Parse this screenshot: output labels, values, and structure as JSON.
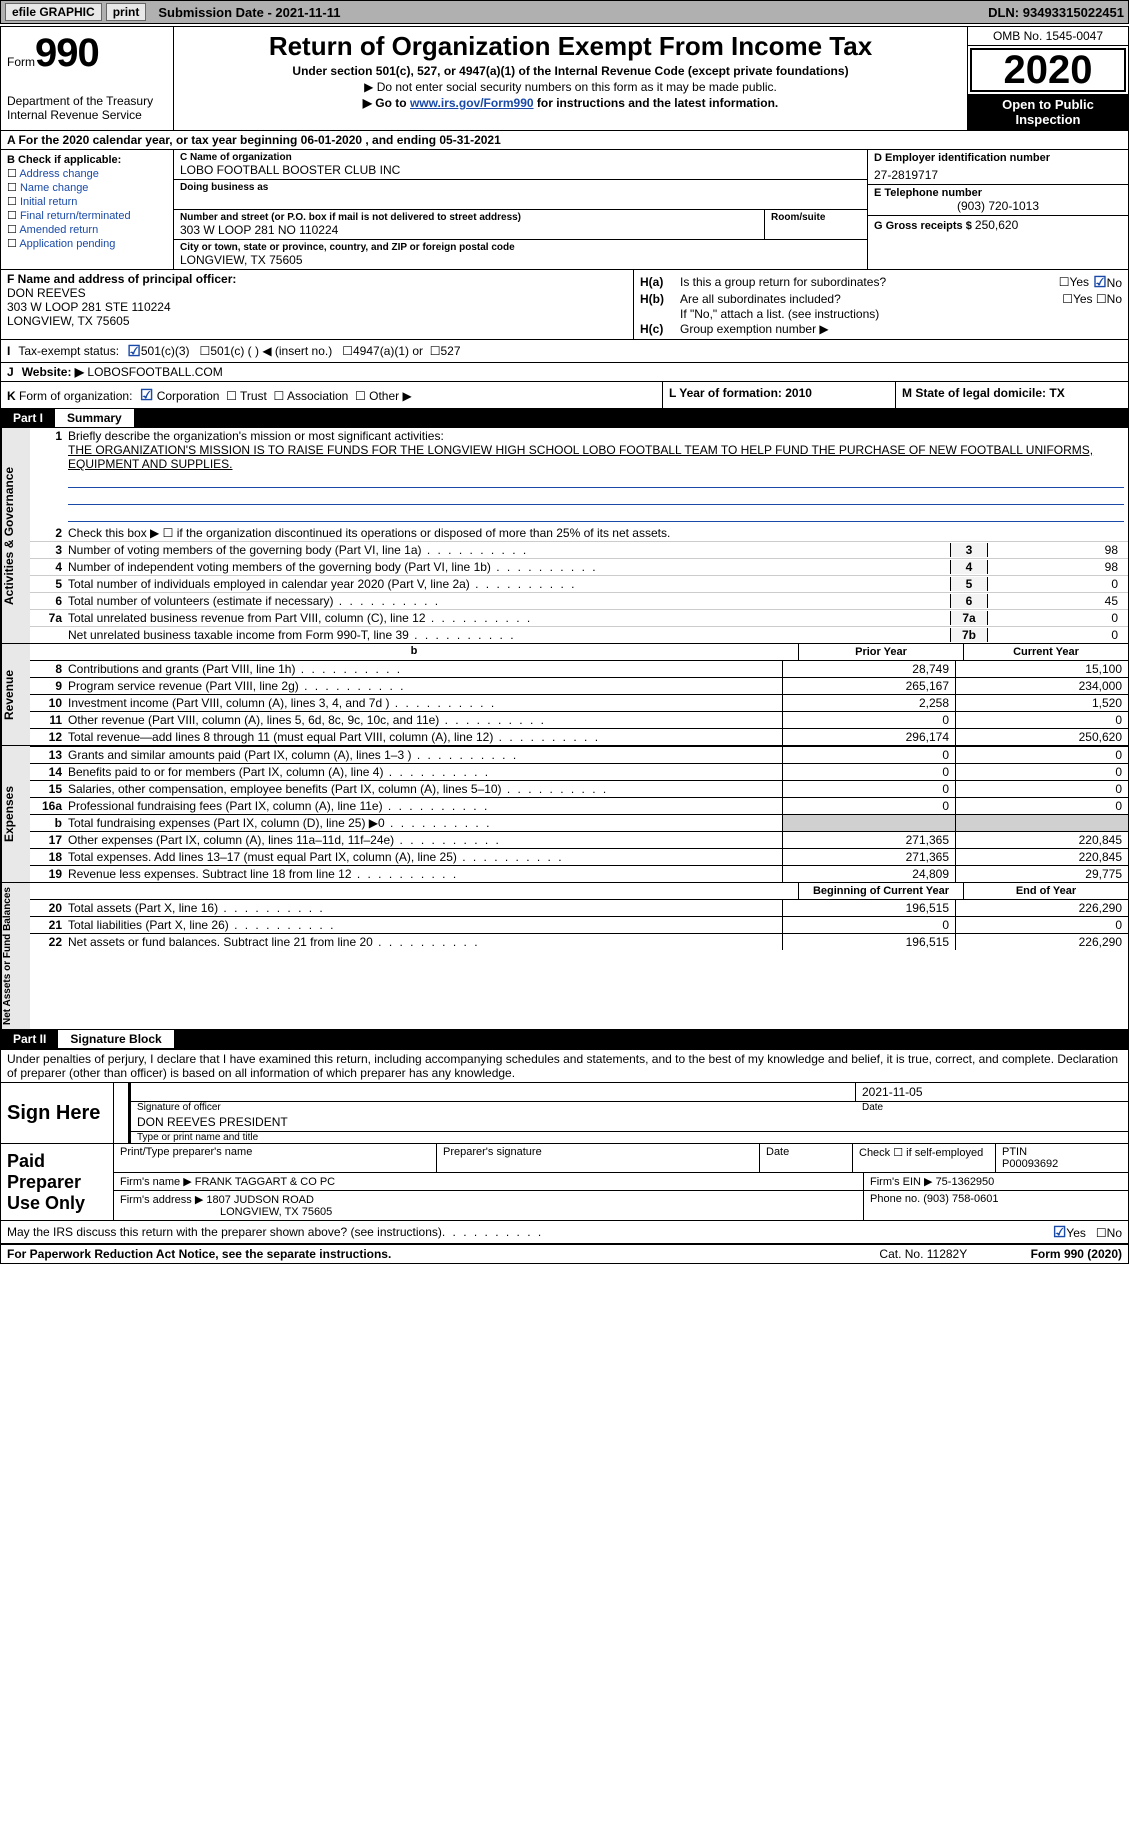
{
  "topbar": {
    "efile": "efile GRAPHIC",
    "print": "print",
    "submission_label": "Submission Date - ",
    "submission_date": "2021-11-11",
    "dln_label": "DLN: ",
    "dln": "93493315022451"
  },
  "header": {
    "form_word": "Form",
    "form_num": "990",
    "dept": "Department of the Treasury\nInternal Revenue Service",
    "title": "Return of Organization Exempt From Income Tax",
    "subtitle": "Under section 501(c), 527, or 4947(a)(1) of the Internal Revenue Code (except private foundations)",
    "note1": "▶ Do not enter social security numbers on this form as it may be made public.",
    "note2_pre": "▶ Go to ",
    "note2_link": "www.irs.gov/Form990",
    "note2_post": " for instructions and the latest information.",
    "omb": "OMB No. 1545-0047",
    "year": "2020",
    "inspect": "Open to Public Inspection"
  },
  "line_a": "A For the 2020 calendar year, or tax year beginning 06-01-2020    , and ending 05-31-2021",
  "box_b": {
    "hdr": "B Check if applicable:",
    "items": [
      "Address change",
      "Name change",
      "Initial return",
      "Final return/terminated",
      "Amended return",
      "Application pending"
    ]
  },
  "box_c": {
    "name_lbl": "C Name of organization",
    "name": "LOBO FOOTBALL BOOSTER CLUB INC",
    "dba_lbl": "Doing business as",
    "addr_lbl": "Number and street (or P.O. box if mail is not delivered to street address)",
    "addr": "303 W LOOP 281 NO 110224",
    "room_lbl": "Room/suite",
    "city_lbl": "City or town, state or province, country, and ZIP or foreign postal code",
    "city": "LONGVIEW, TX  75605"
  },
  "box_d": {
    "lbl": "D Employer identification number",
    "val": "27-2819717"
  },
  "box_e": {
    "lbl": "E Telephone number",
    "val": "(903) 720-1013"
  },
  "box_g": {
    "lbl": "G Gross receipts $ ",
    "val": "250,620"
  },
  "box_f": {
    "lbl": "F Name and address of principal officer:",
    "name": "DON REEVES",
    "addr1": "303 W LOOP 281 STE 110224",
    "addr2": "LONGVIEW, TX  75605"
  },
  "box_h": {
    "a_lbl": "H(a)",
    "a_txt": "Is this a group return for subordinates?",
    "a_yes": "Yes",
    "a_no": "No",
    "b_lbl": "H(b)",
    "b_txt": "Are all subordinates included?",
    "b_note": "If \"No,\" attach a list. (see instructions)",
    "c_lbl": "H(c)",
    "c_txt": "Group exemption number ▶"
  },
  "row_i": {
    "lbl": "I",
    "txt": "Tax-exempt status:",
    "opts": [
      "501(c)(3)",
      "501(c) (  ) ◀ (insert no.)",
      "4947(a)(1) or",
      "527"
    ]
  },
  "row_j": {
    "lbl": "J",
    "txt": "Website: ▶",
    "val": "LOBOSFOOTBALL.COM"
  },
  "row_k": {
    "lbl": "K",
    "txt": "Form of organization:",
    "opts": [
      "Corporation",
      "Trust",
      "Association",
      "Other ▶"
    ]
  },
  "row_l": {
    "txt": "L Year of formation: 2010"
  },
  "row_m": {
    "txt": "M State of legal domicile: TX"
  },
  "part1": {
    "num": "Part I",
    "title": "Summary",
    "vtab1": "Activities & Governance",
    "vtab2": "Revenue",
    "vtab3": "Expenses",
    "vtab4": "Net Assets or Fund Balances",
    "q1_lbl": "1",
    "q1": "Briefly describe the organization's mission or most significant activities:",
    "q1_val": "THE ORGANIZATION'S MISSION IS TO RAISE FUNDS FOR THE LONGVIEW HIGH SCHOOL LOBO FOOTBALL TEAM TO HELP FUND THE PURCHASE OF NEW FOOTBALL UNIFORMS, EQUIPMENT AND SUPPLIES.",
    "q2_lbl": "2",
    "q2": "Check this box ▶ ☐  if the organization discontinued its operations or disposed of more than 25% of its net assets.",
    "rows_act": [
      {
        "n": "3",
        "t": "Number of voting members of the governing body (Part VI, line 1a)",
        "c": "3",
        "v": "98"
      },
      {
        "n": "4",
        "t": "Number of independent voting members of the governing body (Part VI, line 1b)",
        "c": "4",
        "v": "98"
      },
      {
        "n": "5",
        "t": "Total number of individuals employed in calendar year 2020 (Part V, line 2a)",
        "c": "5",
        "v": "0"
      },
      {
        "n": "6",
        "t": "Total number of volunteers (estimate if necessary)",
        "c": "6",
        "v": "45"
      },
      {
        "n": "7a",
        "t": "Total unrelated business revenue from Part VIII, column (C), line 12",
        "c": "7a",
        "v": "0"
      },
      {
        "n": "",
        "t": "Net unrelated business taxable income from Form 990-T, line 39",
        "c": "7b",
        "v": "0"
      }
    ],
    "col_hdr_b": "b",
    "col_hdr_prior": "Prior Year",
    "col_hdr_curr": "Current Year",
    "rows_rev": [
      {
        "n": "8",
        "t": "Contributions and grants (Part VIII, line 1h)",
        "p": "28,749",
        "c": "15,100"
      },
      {
        "n": "9",
        "t": "Program service revenue (Part VIII, line 2g)",
        "p": "265,167",
        "c": "234,000"
      },
      {
        "n": "10",
        "t": "Investment income (Part VIII, column (A), lines 3, 4, and 7d )",
        "p": "2,258",
        "c": "1,520"
      },
      {
        "n": "11",
        "t": "Other revenue (Part VIII, column (A), lines 5, 6d, 8c, 9c, 10c, and 11e)",
        "p": "0",
        "c": "0"
      },
      {
        "n": "12",
        "t": "Total revenue—add lines 8 through 11 (must equal Part VIII, column (A), line 12)",
        "p": "296,174",
        "c": "250,620"
      }
    ],
    "rows_exp": [
      {
        "n": "13",
        "t": "Grants and similar amounts paid (Part IX, column (A), lines 1–3 )",
        "p": "0",
        "c": "0"
      },
      {
        "n": "14",
        "t": "Benefits paid to or for members (Part IX, column (A), line 4)",
        "p": "0",
        "c": "0"
      },
      {
        "n": "15",
        "t": "Salaries, other compensation, employee benefits (Part IX, column (A), lines 5–10)",
        "p": "0",
        "c": "0"
      },
      {
        "n": "16a",
        "t": "Professional fundraising fees (Part IX, column (A), line 11e)",
        "p": "0",
        "c": "0"
      },
      {
        "n": "b",
        "t": "Total fundraising expenses (Part IX, column (D), line 25) ▶0",
        "p": "",
        "c": "",
        "shade": true
      },
      {
        "n": "17",
        "t": "Other expenses (Part IX, column (A), lines 11a–11d, 11f–24e)",
        "p": "271,365",
        "c": "220,845"
      },
      {
        "n": "18",
        "t": "Total expenses. Add lines 13–17 (must equal Part IX, column (A), line 25)",
        "p": "271,365",
        "c": "220,845"
      },
      {
        "n": "19",
        "t": "Revenue less expenses. Subtract line 18 from line 12",
        "p": "24,809",
        "c": "29,775"
      }
    ],
    "col_hdr_beg": "Beginning of Current Year",
    "col_hdr_end": "End of Year",
    "rows_net": [
      {
        "n": "20",
        "t": "Total assets (Part X, line 16)",
        "p": "196,515",
        "c": "226,290"
      },
      {
        "n": "21",
        "t": "Total liabilities (Part X, line 26)",
        "p": "0",
        "c": "0"
      },
      {
        "n": "22",
        "t": "Net assets or fund balances. Subtract line 21 from line 20",
        "p": "196,515",
        "c": "226,290"
      }
    ]
  },
  "part2": {
    "num": "Part II",
    "title": "Signature Block",
    "penalties": "Under penalties of perjury, I declare that I have examined this return, including accompanying schedules and statements, and to the best of my knowledge and belief, it is true, correct, and complete. Declaration of preparer (other than officer) is based on all information of which preparer has any knowledge.",
    "sign_here": "Sign Here",
    "sig_officer_lbl": "Signature of officer",
    "sig_date_lbl": "Date",
    "sig_date": "2021-11-05",
    "sig_name": "DON REEVES PRESIDENT",
    "sig_name_lbl": "Type or print name and title",
    "paid": "Paid Preparer Use Only",
    "prep_name_lbl": "Print/Type preparer's name",
    "prep_sig_lbl": "Preparer's signature",
    "prep_date_lbl": "Date",
    "prep_check_lbl": "Check ☐ if self-employed",
    "ptin_lbl": "PTIN",
    "ptin": "P00093692",
    "firm_name_lbl": "Firm's name   ▶",
    "firm_name": "FRANK TAGGART & CO PC",
    "firm_ein_lbl": "Firm's EIN ▶",
    "firm_ein": "75-1362950",
    "firm_addr_lbl": "Firm's address ▶",
    "firm_addr": "1807 JUDSON ROAD",
    "firm_city": "LONGVIEW, TX  75605",
    "firm_phone_lbl": "Phone no. ",
    "firm_phone": "(903) 758-0601",
    "discuss": "May the IRS discuss this return with the preparer shown above? (see instructions)",
    "discuss_yes": "Yes",
    "discuss_no": "No"
  },
  "footer": {
    "pra": "For Paperwork Reduction Act Notice, see the separate instructions.",
    "cat": "Cat. No. 11282Y",
    "form": "Form 990 (2020)"
  }
}
